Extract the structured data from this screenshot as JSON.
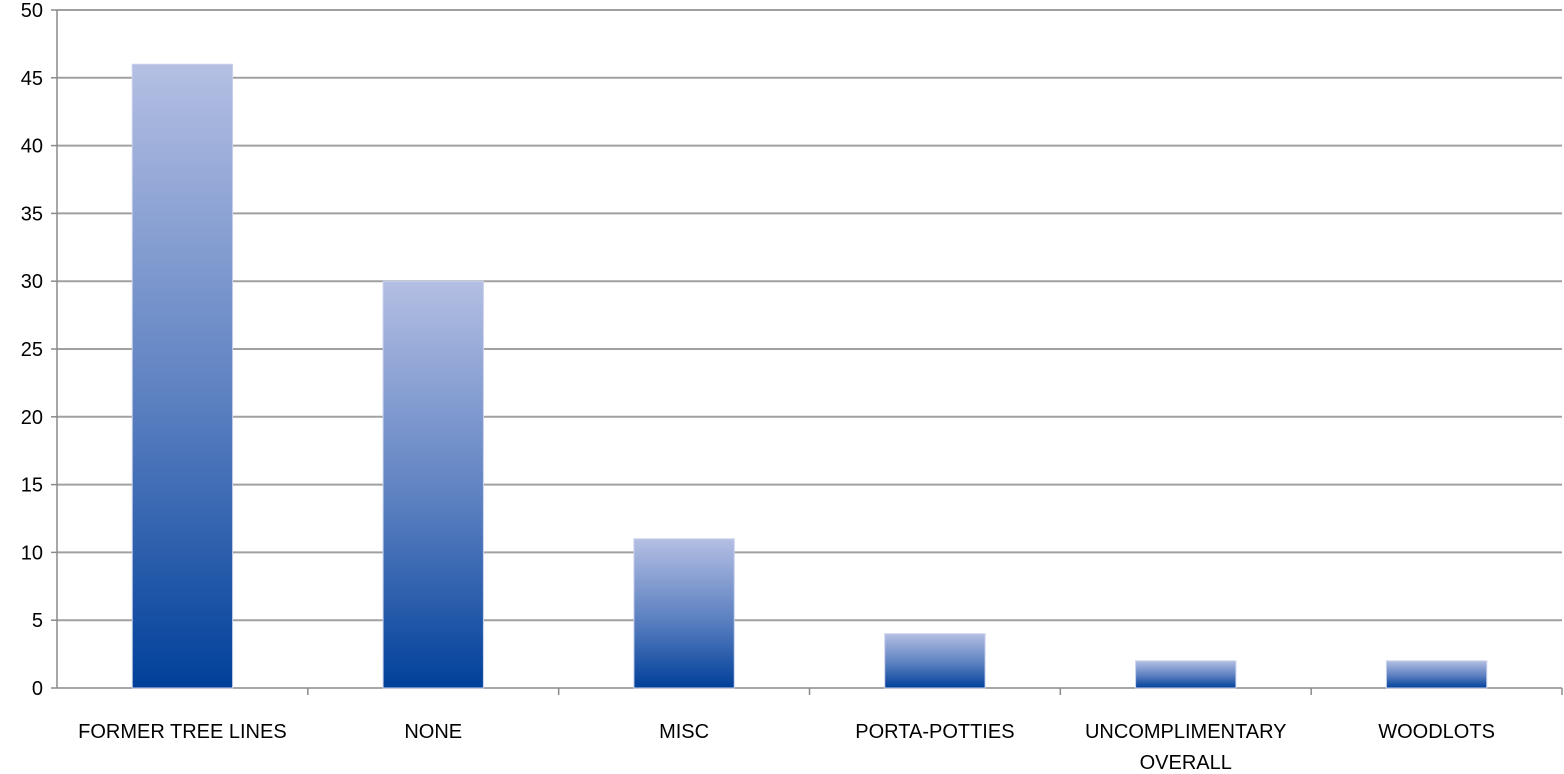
{
  "chart_data": {
    "type": "bar",
    "categories": [
      "FORMER TREE LINES",
      "NONE",
      "MISC",
      "PORTA-POTTIES",
      "UNCOMPLIMENTARY OVERALL",
      "WOODLOTS"
    ],
    "category_lines": [
      [
        "FORMER TREE LINES"
      ],
      [
        "NONE"
      ],
      [
        "MISC"
      ],
      [
        "PORTA-POTTIES"
      ],
      [
        "UNCOMPLIMENTARY",
        "OVERALL"
      ],
      [
        "WOODLOTS"
      ]
    ],
    "values": [
      46,
      30,
      11,
      4,
      2,
      2
    ],
    "ylim": [
      0,
      50
    ],
    "yticks": [
      0,
      5,
      10,
      15,
      20,
      25,
      30,
      35,
      40,
      45,
      50
    ],
    "grid": true,
    "legend": "none",
    "colors": {
      "bar_top": "#b4bfe3",
      "bar_bottom": "#00409a",
      "grid": "#a0a0a0",
      "axis": "#8a8a8a"
    }
  }
}
